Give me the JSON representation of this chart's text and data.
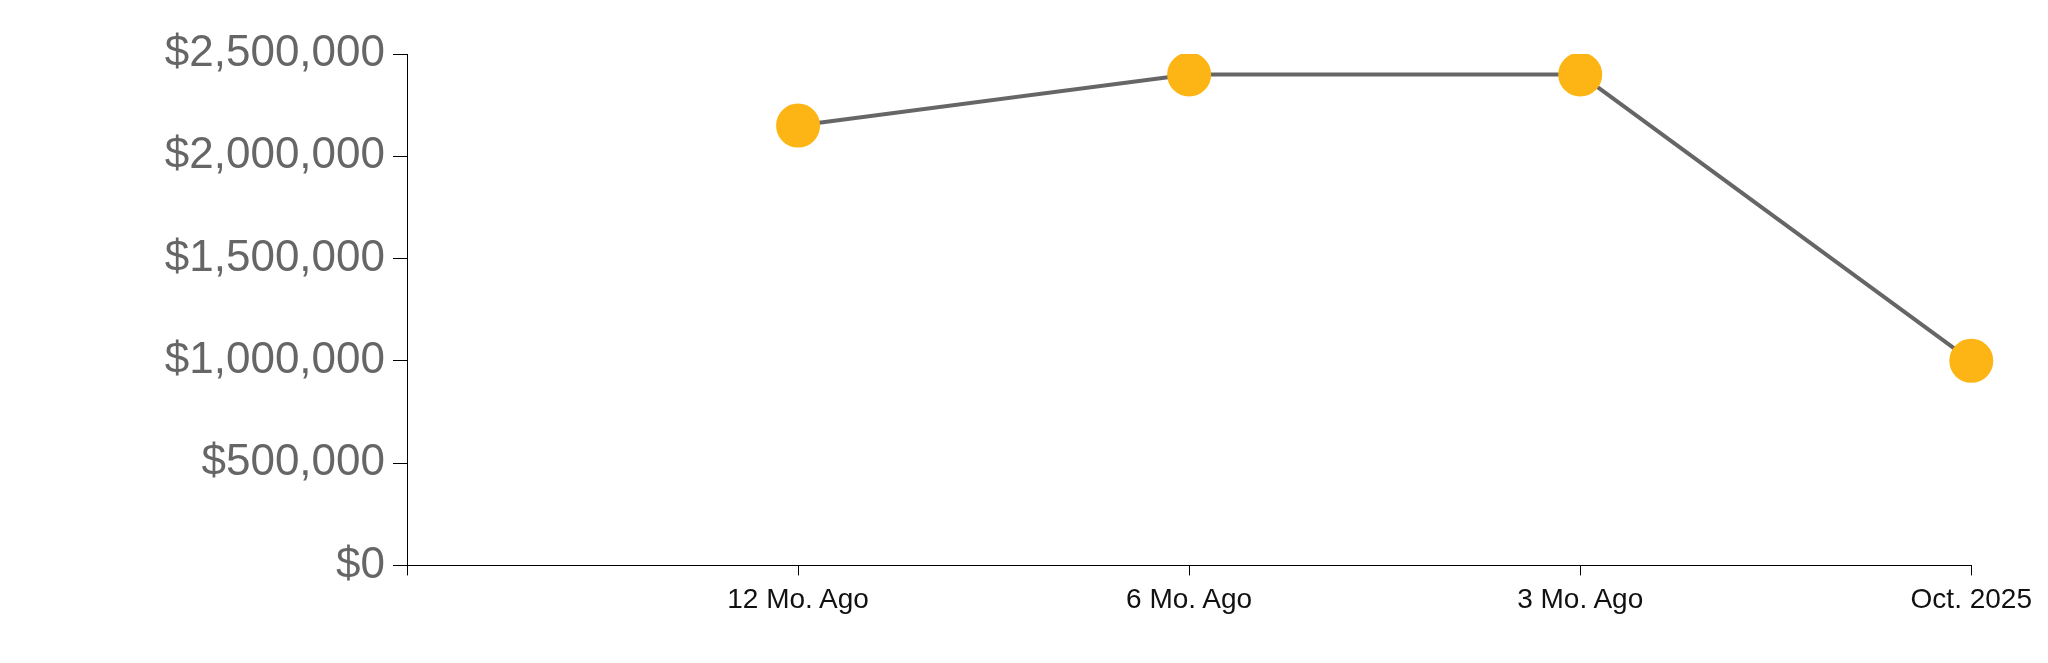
{
  "chart_data": {
    "type": "line",
    "categories": [
      null,
      "12 Mo. Ago",
      "6 Mo. Ago",
      "3 Mo. Ago",
      "Oct. 2025"
    ],
    "series": [
      {
        "color": "#fdb515",
        "values": [
          null,
          2150000,
          2400000,
          2400000,
          1000000
        ]
      }
    ],
    "ylim": [
      0,
      2500000
    ],
    "yticks": [
      {
        "value": 0,
        "label": "$0"
      },
      {
        "value": 500000,
        "label": "$500,000"
      },
      {
        "value": 1000000,
        "label": "$1,000,000"
      },
      {
        "value": 1500000,
        "label": "$1,500,000"
      },
      {
        "value": 2000000,
        "label": "$2,000,000"
      },
      {
        "value": 2500000,
        "label": "$2,500,000"
      }
    ],
    "grid": false,
    "legend": false,
    "marker": "circle",
    "line_style": "solid"
  }
}
